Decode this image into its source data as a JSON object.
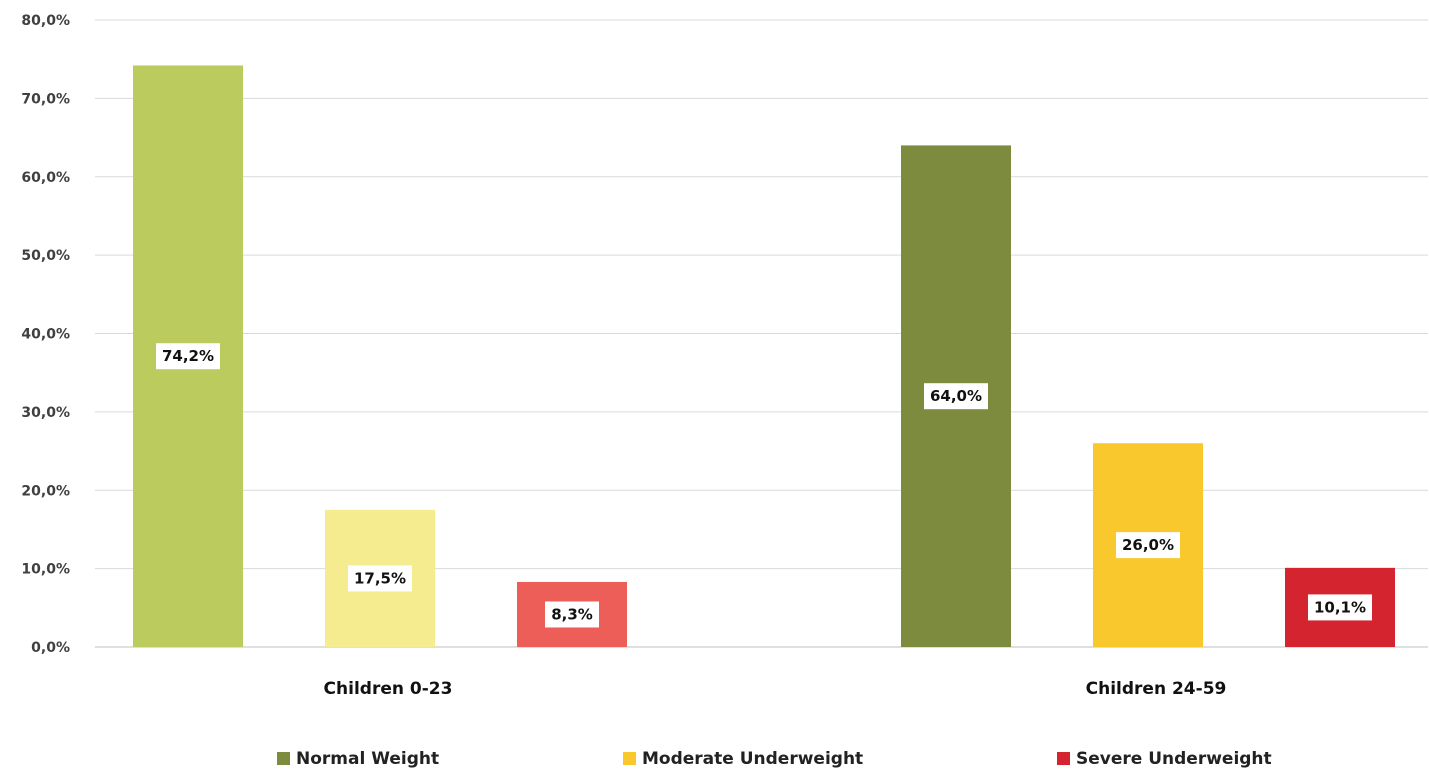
{
  "chart_data": {
    "type": "bar",
    "categories": [
      "Children 0-23",
      "Children 24-59"
    ],
    "series": [
      {
        "name": "Normal Weight",
        "values": [
          74.2,
          64.0
        ],
        "labels": [
          "74,2%",
          "64,0%"
        ],
        "colors": [
          "#bccb5d",
          "#7d8b3f"
        ]
      },
      {
        "name": "Moderate Underweight",
        "values": [
          17.5,
          26.0
        ],
        "labels": [
          "17,5%",
          "26,0%"
        ],
        "colors": [
          "#f5ec8f",
          "#f8c82c"
        ]
      },
      {
        "name": "Severe Underweight",
        "values": [
          8.3,
          10.1
        ],
        "labels": [
          "8,3%",
          "10,1%"
        ],
        "colors": [
          "#ed5e58",
          "#d42430"
        ]
      }
    ],
    "legend_colors": [
      "#7d8b3f",
      "#f8c82c",
      "#d42430"
    ],
    "y_ticks": [
      "0,0%",
      "10,0%",
      "20,0%",
      "30,0%",
      "40,0%",
      "50,0%",
      "60,0%",
      "70,0%",
      "80,0%"
    ],
    "ylim": [
      0,
      80
    ],
    "grid": true,
    "legend_position": "bottom",
    "title": "",
    "xlabel": "",
    "ylabel": ""
  }
}
